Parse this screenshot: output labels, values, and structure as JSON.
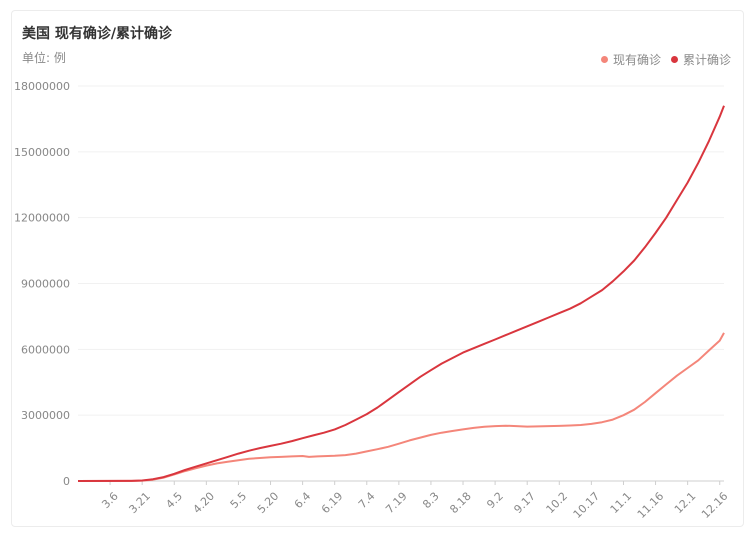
{
  "chart_data": {
    "type": "line",
    "title": "美国 现有确诊/累计确诊",
    "subtitle": "单位: 例",
    "legend_position": "top-right",
    "grid": true,
    "ylim": [
      0,
      18000000
    ],
    "y_ticks": [
      "0",
      "3000000",
      "6000000",
      "9000000",
      "12000000",
      "15000000",
      "18000000"
    ],
    "x_tick_labels": [
      "3.6",
      "3.21",
      "4.5",
      "4.20",
      "5.5",
      "5.20",
      "6.4",
      "6.19",
      "7.4",
      "7.19",
      "8.3",
      "8.18",
      "9.2",
      "9.17",
      "10.2",
      "10.17",
      "11.1",
      "11.16",
      "12.1",
      "12.16"
    ],
    "x_day_range": [
      0,
      302
    ],
    "tick_days": [
      15,
      30,
      45,
      60,
      75,
      90,
      105,
      120,
      135,
      150,
      165,
      180,
      195,
      210,
      225,
      240,
      255,
      270,
      285,
      300
    ],
    "series": [
      {
        "name": "现有确诊",
        "color": "#f4867a",
        "points": [
          [
            0,
            0
          ],
          [
            25,
            5000
          ],
          [
            30,
            20000
          ],
          [
            35,
            60000
          ],
          [
            40,
            150000
          ],
          [
            45,
            300000
          ],
          [
            50,
            450000
          ],
          [
            55,
            580000
          ],
          [
            60,
            700000
          ],
          [
            65,
            800000
          ],
          [
            70,
            880000
          ],
          [
            75,
            950000
          ],
          [
            80,
            1010000
          ],
          [
            85,
            1050000
          ],
          [
            90,
            1080000
          ],
          [
            95,
            1100000
          ],
          [
            100,
            1120000
          ],
          [
            105,
            1140000
          ],
          [
            108,
            1100000
          ],
          [
            112,
            1120000
          ],
          [
            120,
            1150000
          ],
          [
            125,
            1180000
          ],
          [
            130,
            1250000
          ],
          [
            135,
            1350000
          ],
          [
            140,
            1450000
          ],
          [
            145,
            1560000
          ],
          [
            150,
            1700000
          ],
          [
            155,
            1850000
          ],
          [
            160,
            1980000
          ],
          [
            165,
            2100000
          ],
          [
            170,
            2200000
          ],
          [
            175,
            2280000
          ],
          [
            180,
            2350000
          ],
          [
            185,
            2420000
          ],
          [
            190,
            2470000
          ],
          [
            195,
            2500000
          ],
          [
            200,
            2520000
          ],
          [
            205,
            2500000
          ],
          [
            210,
            2480000
          ],
          [
            215,
            2490000
          ],
          [
            220,
            2500000
          ],
          [
            225,
            2510000
          ],
          [
            230,
            2530000
          ],
          [
            235,
            2550000
          ],
          [
            240,
            2600000
          ],
          [
            245,
            2680000
          ],
          [
            250,
            2800000
          ],
          [
            255,
            3000000
          ],
          [
            260,
            3250000
          ],
          [
            265,
            3600000
          ],
          [
            270,
            4000000
          ],
          [
            275,
            4400000
          ],
          [
            280,
            4800000
          ],
          [
            285,
            5150000
          ],
          [
            290,
            5500000
          ],
          [
            295,
            5950000
          ],
          [
            300,
            6400000
          ],
          [
            302,
            6750000
          ]
        ]
      },
      {
        "name": "累计确诊",
        "color": "#d9363e",
        "points": [
          [
            0,
            0
          ],
          [
            25,
            5000
          ],
          [
            30,
            25000
          ],
          [
            35,
            80000
          ],
          [
            40,
            180000
          ],
          [
            45,
            330000
          ],
          [
            50,
            500000
          ],
          [
            55,
            650000
          ],
          [
            60,
            800000
          ],
          [
            65,
            950000
          ],
          [
            70,
            1100000
          ],
          [
            75,
            1250000
          ],
          [
            80,
            1380000
          ],
          [
            85,
            1500000
          ],
          [
            90,
            1600000
          ],
          [
            95,
            1700000
          ],
          [
            100,
            1820000
          ],
          [
            105,
            1950000
          ],
          [
            110,
            2080000
          ],
          [
            115,
            2200000
          ],
          [
            120,
            2350000
          ],
          [
            125,
            2550000
          ],
          [
            130,
            2800000
          ],
          [
            135,
            3050000
          ],
          [
            140,
            3350000
          ],
          [
            145,
            3700000
          ],
          [
            150,
            4050000
          ],
          [
            155,
            4400000
          ],
          [
            160,
            4750000
          ],
          [
            165,
            5050000
          ],
          [
            170,
            5350000
          ],
          [
            175,
            5600000
          ],
          [
            180,
            5850000
          ],
          [
            185,
            6050000
          ],
          [
            190,
            6250000
          ],
          [
            195,
            6450000
          ],
          [
            200,
            6650000
          ],
          [
            205,
            6850000
          ],
          [
            210,
            7050000
          ],
          [
            215,
            7250000
          ],
          [
            220,
            7450000
          ],
          [
            225,
            7650000
          ],
          [
            230,
            7850000
          ],
          [
            235,
            8100000
          ],
          [
            240,
            8400000
          ],
          [
            245,
            8700000
          ],
          [
            250,
            9100000
          ],
          [
            255,
            9550000
          ],
          [
            260,
            10050000
          ],
          [
            265,
            10650000
          ],
          [
            270,
            11300000
          ],
          [
            275,
            12000000
          ],
          [
            280,
            12800000
          ],
          [
            285,
            13600000
          ],
          [
            290,
            14500000
          ],
          [
            295,
            15500000
          ],
          [
            300,
            16600000
          ],
          [
            302,
            17100000
          ]
        ]
      }
    ]
  }
}
